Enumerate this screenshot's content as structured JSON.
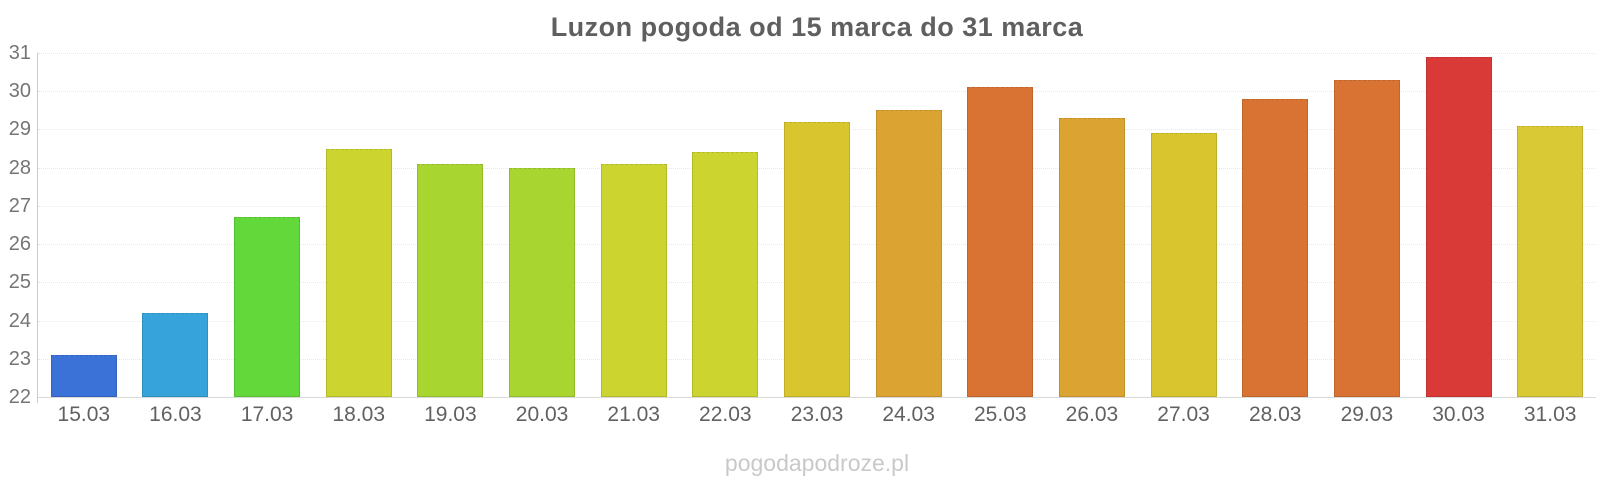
{
  "chart_data": {
    "type": "bar",
    "title": "Luzon pogoda od 15 marca do 31 marca",
    "categories": [
      "15.03",
      "16.03",
      "17.03",
      "18.03",
      "19.03",
      "20.03",
      "21.03",
      "22.03",
      "23.03",
      "24.03",
      "25.03",
      "26.03",
      "27.03",
      "28.03",
      "29.03",
      "30.03",
      "31.03"
    ],
    "values": [
      23.1,
      24.2,
      26.7,
      28.5,
      28.1,
      28.0,
      28.1,
      28.4,
      29.2,
      29.5,
      30.1,
      29.3,
      28.9,
      29.8,
      30.3,
      30.9,
      29.1
    ],
    "bar_colors": [
      "#3b72d8",
      "#37a3db",
      "#63d83a",
      "#ccd42f",
      "#a9d530",
      "#a9d530",
      "#ccd42f",
      "#ccd42f",
      "#d9c62e",
      "#dba432",
      "#d97334",
      "#dba432",
      "#d9c62e",
      "#d97334",
      "#d97334",
      "#d93a38",
      "#d9c935"
    ],
    "bar_border_colors": [
      "#3462bd",
      "#2f8fc1",
      "#55bd32",
      "#b3ba29",
      "#94bb2a",
      "#94bb2a",
      "#b3ba29",
      "#b3ba29",
      "#bfae28",
      "#c1902c",
      "#bf652e",
      "#c1902c",
      "#bfae28",
      "#bf652e",
      "#bf652e",
      "#bf3331",
      "#bfb12e"
    ],
    "xlabel": "",
    "ylabel": "",
    "ylim": [
      22,
      31
    ],
    "yticks": [
      31,
      30,
      29,
      28,
      27,
      26,
      25,
      24,
      23,
      22
    ],
    "grid": "horizontal-dotted",
    "legend": "none",
    "units": "°C (implied, not shown)"
  },
  "watermark": {
    "text": "pogodapodroze.pl"
  },
  "colors": {
    "background": "#ffffff",
    "title": "#5f5f5f",
    "y_label": "#757575",
    "x_label": "#616161",
    "gridline": "#e7e7e7",
    "axis_line": "#cccccc",
    "baseline": "#d9d9d9",
    "watermark": "#c9c9c9"
  }
}
